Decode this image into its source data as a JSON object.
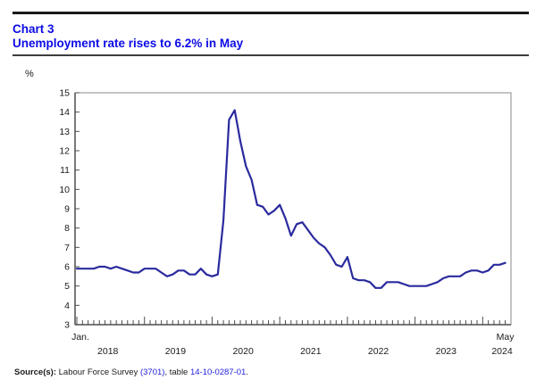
{
  "header": {
    "kicker": "Chart 3",
    "title": "Unemployment rate rises to 6.2% in May",
    "accent_color": "#0b0be6"
  },
  "chart_data": {
    "type": "line",
    "title": "Unemployment rate rises to 6.2% in May",
    "ylabel": "%",
    "ylim": [
      3,
      15
    ],
    "ytick_step": 1,
    "grid": false,
    "legend": "none",
    "x_start_label": "Jan.",
    "x_end_label": "May",
    "year_labels": [
      "2018",
      "2019",
      "2020",
      "2021",
      "2022",
      "2023",
      "2024"
    ],
    "x_start": "2018-01",
    "x_end": "2024-05",
    "line_color": "#2a2a9e",
    "series": [
      {
        "name": "Unemployment rate",
        "values": [
          5.9,
          5.9,
          5.9,
          5.9,
          6.0,
          6.0,
          5.9,
          6.0,
          5.9,
          5.8,
          5.7,
          5.7,
          5.9,
          5.9,
          5.9,
          5.7,
          5.5,
          5.6,
          5.8,
          5.8,
          5.6,
          5.6,
          5.9,
          5.6,
          5.5,
          5.6,
          8.4,
          13.6,
          14.1,
          12.5,
          11.2,
          10.5,
          9.2,
          9.1,
          8.7,
          8.9,
          9.2,
          8.5,
          7.6,
          8.2,
          8.3,
          7.9,
          7.5,
          7.2,
          7.0,
          6.6,
          6.1,
          6.0,
          6.5,
          5.4,
          5.3,
          5.3,
          5.2,
          4.9,
          4.9,
          5.2,
          5.2,
          5.2,
          5.1,
          5.0,
          5.0,
          5.0,
          5.0,
          5.1,
          5.2,
          5.4,
          5.5,
          5.5,
          5.5,
          5.7,
          5.8,
          5.8,
          5.7,
          5.8,
          6.1,
          6.1,
          6.2
        ]
      }
    ]
  },
  "source": {
    "label": "Source(s):",
    "text_1": " Labour Force Survey ",
    "link_1": "(3701)",
    "text_2": ", table ",
    "link_2": "14-10-0287-01",
    "text_3": ".",
    "link_color": "#2222e0"
  }
}
